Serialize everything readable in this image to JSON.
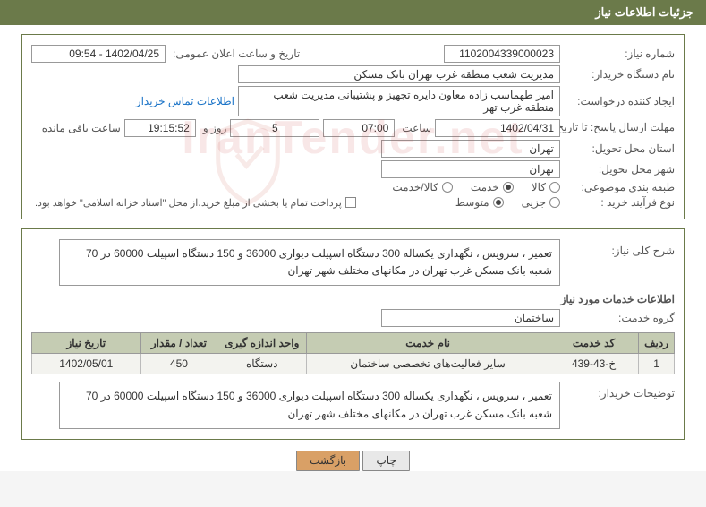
{
  "header": {
    "title": "جزئیات اطلاعات نیاز"
  },
  "fields": {
    "need_number_label": "شماره نیاز:",
    "need_number": "1102004339000023",
    "announce_label": "تاریخ و ساعت اعلان عمومی:",
    "announce_value": "1402/04/25 - 09:54",
    "buyer_org_label": "نام دستگاه خریدار:",
    "buyer_org": "مدیریت شعب منطقه غرب تهران بانک مسکن",
    "requester_label": "ایجاد کننده درخواست:",
    "requester": "امیر طهماسب زاده معاون دایره تجهیز و پشتیبانی مدیریت شعب منطقه غرب تهر",
    "contact_link": "اطلاعات تماس خریدار",
    "deadline_label": "مهلت ارسال پاسخ: تا تاریخ:",
    "deadline_date": "1402/04/31",
    "time_label": "ساعت",
    "deadline_time": "07:00",
    "days": "5",
    "days_label": "روز و",
    "countdown": "19:15:52",
    "remaining_label": "ساعت باقی مانده",
    "province_label": "استان محل تحویل:",
    "province": "تهران",
    "city_label": "شهر محل تحویل:",
    "city": "تهران",
    "category_label": "طبقه بندی موضوعی:",
    "cat_goods": "کالا",
    "cat_service": "خدمت",
    "cat_goods_service": "کالا/خدمت",
    "process_label": "نوع فرآیند خرید :",
    "process_partial": "جزیی",
    "process_medium": "متوسط",
    "payment_note": "پرداخت تمام یا بخشی از مبلغ خرید،از محل \"اسناد خزانه اسلامی\" خواهد بود.",
    "general_desc_label": "شرح کلی نیاز:",
    "general_desc": "تعمیر ، سرویس ، نگهداری یکساله 300 دستگاه اسپیلت دیواری 36000 و 150 دستگاه اسپیلت 60000 در 70 شعبه بانک مسکن غرب تهران در مکانهای مختلف شهر تهران",
    "services_title": "اطلاعات خدمات مورد نیاز",
    "group_label": "گروه خدمت:",
    "group_value": "ساختمان"
  },
  "table": {
    "columns": [
      "ردیف",
      "کد خدمت",
      "نام خدمت",
      "واحد اندازه گیری",
      "تعداد / مقدار",
      "تاریخ نیاز"
    ],
    "col_widths": [
      "5%",
      "14%",
      "38%",
      "14%",
      "12%",
      "17%"
    ],
    "rows": [
      [
        "1",
        "خ-43-439",
        "سایر فعالیت‌های تخصصی ساختمان",
        "دستگاه",
        "450",
        "1402/05/01"
      ]
    ]
  },
  "buyer_notes": {
    "label": "توضیحات خریدار:",
    "text": "تعمیر ، سرویس ، نگهداری یکساله 300 دستگاه اسپیلت دیواری 36000 و 150 دستگاه اسپیلت 60000 در 70 شعبه بانک مسکن غرب تهران در مکانهای مختلف شهر تهران"
  },
  "buttons": {
    "print": "چاپ",
    "back": "بازگشت"
  },
  "watermark": "IranTender.net",
  "colors": {
    "header_bg": "#6b7a4a",
    "table_header_bg": "#c5ccb3",
    "btn_default_bg": "#e8e8e8",
    "btn_accent_bg": "#d9a066",
    "link_color": "#1a73c7"
  }
}
